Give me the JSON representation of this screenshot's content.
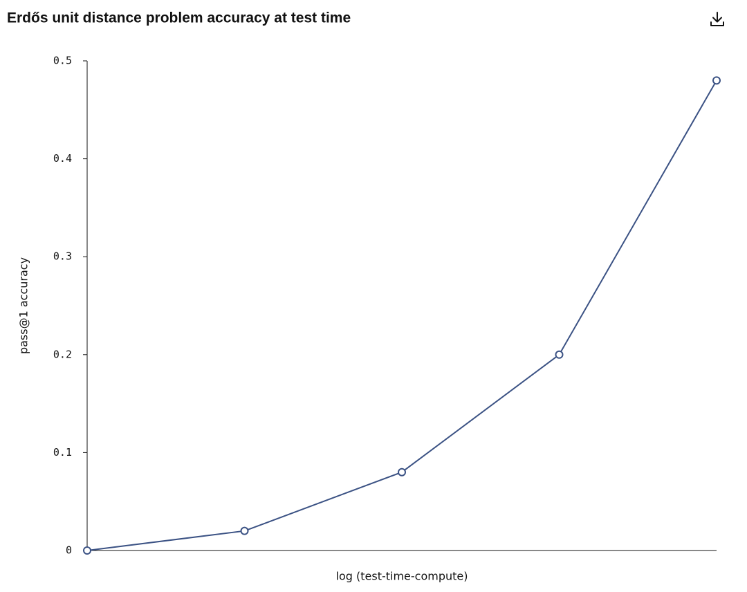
{
  "chart_data": {
    "type": "line",
    "title": "Erdős unit distance problem accuracy at test time",
    "x_label": "log (test-time-compute)",
    "y_label": "pass@1 accuracy",
    "categories": [
      null,
      null,
      null,
      null,
      null
    ],
    "values": [
      0,
      0.02,
      0.08,
      0.2,
      0.48
    ],
    "color": "#3b5284",
    "ylim": [
      0,
      0.5
    ],
    "yticks": [
      0,
      0.1,
      0.2,
      0.3,
      0.4,
      0.5
    ],
    "grid": false
  }
}
